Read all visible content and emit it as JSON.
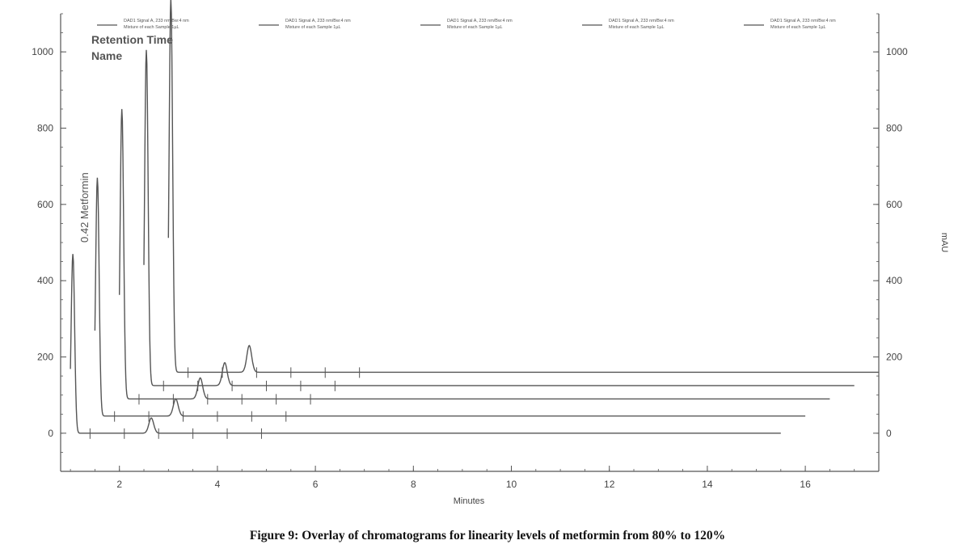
{
  "caption": "Figure 9: Overlay of chromatograms for linearity levels of metformin from 80% to 120%",
  "annotations": {
    "line1": "Retention Time",
    "line2": "Name"
  },
  "peak_label": "0.42  Metformin",
  "chart_data": {
    "type": "line",
    "xlabel": "Minutes",
    "ylabel_right": "mAU",
    "xlim": [
      0.8,
      17.5
    ],
    "ylim": [
      -100,
      1100
    ],
    "x_ticks": [
      2,
      4,
      6,
      8,
      10,
      12,
      14,
      16
    ],
    "y_ticks_left": [
      0,
      200,
      400,
      600,
      800,
      1000
    ],
    "y_ticks_right": [
      0,
      200,
      400,
      600,
      800,
      1000
    ],
    "overlay": "stacked traces, each offset in time and signal",
    "line_color": "#555555",
    "legend": [
      {
        "line1": "DAD1 Signal A, 233 nm/Bw:4 nm",
        "line2": "Mixture of each Sample 1µL"
      },
      {
        "line1": "DAD1 Signal A, 233 nm/Bw:4 nm",
        "line2": "Mixture of each Sample 1µL"
      },
      {
        "line1": "DAD1 Signal A, 233 nm/Bw:4 nm",
        "line2": "Mixture of each Sample 1µL"
      },
      {
        "line1": "DAD1 Signal A, 233 nm/Bw:4 nm",
        "line2": "Mixture of each Sample 1µL"
      },
      {
        "line1": "DAD1 Signal A, 233 nm/Bw:4 nm",
        "line2": "Mixture of each Sample 1µL"
      }
    ],
    "series": [
      {
        "baseline": 0,
        "x_start": 1.0,
        "x_end": 15.5,
        "peak_x": 1.05,
        "peak_height": 470,
        "minor_peak_x": 2.65,
        "minor_peak_height": 40
      },
      {
        "baseline": 45,
        "x_start": 1.5,
        "x_end": 16.0,
        "peak_x": 1.55,
        "peak_height": 625,
        "minor_peak_x": 3.15,
        "minor_peak_height": 45
      },
      {
        "baseline": 90,
        "x_start": 2.0,
        "x_end": 16.5,
        "peak_x": 2.05,
        "peak_height": 760,
        "minor_peak_x": 3.65,
        "minor_peak_height": 55
      },
      {
        "baseline": 125,
        "x_start": 2.5,
        "x_end": 17.0,
        "peak_x": 2.55,
        "peak_height": 880,
        "minor_peak_x": 4.15,
        "minor_peak_height": 60
      },
      {
        "baseline": 160,
        "x_start": 3.0,
        "x_end": 17.5,
        "peak_x": 3.05,
        "peak_height": 980,
        "minor_peak_x": 4.65,
        "minor_peak_height": 70
      }
    ]
  }
}
